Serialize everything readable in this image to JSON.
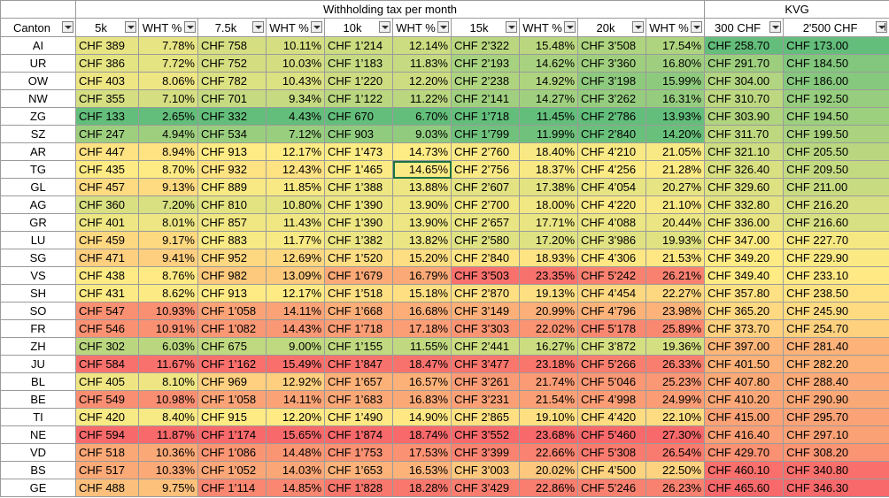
{
  "group_headers": [
    "",
    "Withholding tax per month",
    "KVG"
  ],
  "columns": [
    "Canton",
    "5k",
    "WHT %",
    "7.5k",
    "WHT %",
    "10k",
    "WHT %",
    "15k",
    "WHT %",
    "20k",
    "WHT %",
    "300 CHF",
    "2'500 CHF"
  ],
  "rows": [
    [
      "AI",
      "CHF 389",
      "7.78%",
      "CHF 758",
      "10.11%",
      "CHF 1’214",
      "12.14%",
      "CHF 2’322",
      "15.48%",
      "CHF 3’508",
      "17.54%",
      "CHF 258.70",
      "CHF 173.00"
    ],
    [
      "UR",
      "CHF 386",
      "7.72%",
      "CHF 752",
      "10.03%",
      "CHF 1’183",
      "11.83%",
      "CHF 2’193",
      "14.62%",
      "CHF 3’360",
      "16.80%",
      "CHF 291.70",
      "CHF 184.50"
    ],
    [
      "OW",
      "CHF 403",
      "8.06%",
      "CHF 782",
      "10.43%",
      "CHF 1’220",
      "12.20%",
      "CHF 2’238",
      "14.92%",
      "CHF 3’198",
      "15.99%",
      "CHF 304.00",
      "CHF 186.00"
    ],
    [
      "NW",
      "CHF 355",
      "7.10%",
      "CHF 701",
      "9.34%",
      "CHF 1’122",
      "11.22%",
      "CHF 2’141",
      "14.27%",
      "CHF 3’262",
      "16.31%",
      "CHF 310.70",
      "CHF 192.50"
    ],
    [
      "ZG",
      "CHF 133",
      "2.65%",
      "CHF 332",
      "4.43%",
      "CHF 670",
      "6.70%",
      "CHF 1’718",
      "11.45%",
      "CHF 2’786",
      "13.93%",
      "CHF 303.90",
      "CHF 194.50"
    ],
    [
      "SZ",
      "CHF 247",
      "4.94%",
      "CHF 534",
      "7.12%",
      "CHF 903",
      "9.03%",
      "CHF 1’799",
      "11.99%",
      "CHF 2’840",
      "14.20%",
      "CHF 311.70",
      "CHF 199.50"
    ],
    [
      "AR",
      "CHF 447",
      "8.94%",
      "CHF 913",
      "12.17%",
      "CHF 1’473",
      "14.73%",
      "CHF 2’760",
      "18.40%",
      "CHF 4’210",
      "21.05%",
      "CHF 321.10",
      "CHF 205.50"
    ],
    [
      "TG",
      "CHF 435",
      "8.70%",
      "CHF 932",
      "12.43%",
      "CHF 1’465",
      "14.65%",
      "CHF 2’756",
      "18.37%",
      "CHF 4’256",
      "21.28%",
      "CHF 326.40",
      "CHF 209.50"
    ],
    [
      "GL",
      "CHF 457",
      "9.13%",
      "CHF 889",
      "11.85%",
      "CHF 1’388",
      "13.88%",
      "CHF 2’607",
      "17.38%",
      "CHF 4’054",
      "20.27%",
      "CHF 329.60",
      "CHF 211.00"
    ],
    [
      "AG",
      "CHF 360",
      "7.20%",
      "CHF 810",
      "10.80%",
      "CHF 1’390",
      "13.90%",
      "CHF 2’700",
      "18.00%",
      "CHF 4’220",
      "21.10%",
      "CHF 332.80",
      "CHF 216.20"
    ],
    [
      "GR",
      "CHF 401",
      "8.01%",
      "CHF 857",
      "11.43%",
      "CHF 1’390",
      "13.90%",
      "CHF 2’657",
      "17.71%",
      "CHF 4’088",
      "20.44%",
      "CHF 336.00",
      "CHF 216.60"
    ],
    [
      "LU",
      "CHF 459",
      "9.17%",
      "CHF 883",
      "11.77%",
      "CHF 1’382",
      "13.82%",
      "CHF 2’580",
      "17.20%",
      "CHF 3’986",
      "19.93%",
      "CHF 347.00",
      "CHF 227.70"
    ],
    [
      "SG",
      "CHF 471",
      "9.41%",
      "CHF 952",
      "12.69%",
      "CHF 1’520",
      "15.20%",
      "CHF 2’840",
      "18.93%",
      "CHF 4’306",
      "21.53%",
      "CHF 349.20",
      "CHF 229.90"
    ],
    [
      "VS",
      "CHF 438",
      "8.76%",
      "CHF 982",
      "13.09%",
      "CHF 1’679",
      "16.79%",
      "CHF 3’503",
      "23.35%",
      "CHF 5’242",
      "26.21%",
      "CHF 349.40",
      "CHF 233.10"
    ],
    [
      "SH",
      "CHF 431",
      "8.62%",
      "CHF 913",
      "12.17%",
      "CHF 1’518",
      "15.18%",
      "CHF 2’870",
      "19.13%",
      "CHF 4’454",
      "22.27%",
      "CHF 357.80",
      "CHF 238.50"
    ],
    [
      "SO",
      "CHF 547",
      "10.93%",
      "CHF 1’058",
      "14.11%",
      "CHF 1’668",
      "16.68%",
      "CHF 3’149",
      "20.99%",
      "CHF 4’796",
      "23.98%",
      "CHF 365.20",
      "CHF 245.90"
    ],
    [
      "FR",
      "CHF 546",
      "10.91%",
      "CHF 1’082",
      "14.43%",
      "CHF 1’718",
      "17.18%",
      "CHF 3’303",
      "22.02%",
      "CHF 5’178",
      "25.89%",
      "CHF 373.70",
      "CHF 254.70"
    ],
    [
      "ZH",
      "CHF 302",
      "6.03%",
      "CHF 675",
      "9.00%",
      "CHF 1’155",
      "11.55%",
      "CHF 2’441",
      "16.27%",
      "CHF 3’872",
      "19.36%",
      "CHF 397.00",
      "CHF 281.40"
    ],
    [
      "JU",
      "CHF 584",
      "11.67%",
      "CHF 1’162",
      "15.49%",
      "CHF 1’847",
      "18.47%",
      "CHF 3’477",
      "23.18%",
      "CHF 5’266",
      "26.33%",
      "CHF 401.50",
      "CHF 282.20"
    ],
    [
      "BL",
      "CHF 405",
      "8.10%",
      "CHF 969",
      "12.92%",
      "CHF 1’657",
      "16.57%",
      "CHF 3’261",
      "21.74%",
      "CHF 5’046",
      "25.23%",
      "CHF 407.80",
      "CHF 288.40"
    ],
    [
      "BE",
      "CHF 549",
      "10.98%",
      "CHF 1’058",
      "14.11%",
      "CHF 1’683",
      "16.83%",
      "CHF 3’231",
      "21.54%",
      "CHF 4’998",
      "24.99%",
      "CHF 410.20",
      "CHF 290.90"
    ],
    [
      "TI",
      "CHF 420",
      "8.40%",
      "CHF 915",
      "12.20%",
      "CHF 1’490",
      "14.90%",
      "CHF 2’865",
      "19.10%",
      "CHF 4’420",
      "22.10%",
      "CHF 415.00",
      "CHF 295.70"
    ],
    [
      "NE",
      "CHF 594",
      "11.87%",
      "CHF 1’174",
      "15.65%",
      "CHF 1’874",
      "18.74%",
      "CHF 3’552",
      "23.68%",
      "CHF 5’460",
      "27.30%",
      "CHF 416.40",
      "CHF 297.10"
    ],
    [
      "VD",
      "CHF 518",
      "10.36%",
      "CHF 1’086",
      "14.48%",
      "CHF 1’753",
      "17.53%",
      "CHF 3’399",
      "22.66%",
      "CHF 5’308",
      "26.54%",
      "CHF 429.70",
      "CHF 308.20"
    ],
    [
      "BS",
      "CHF 517",
      "10.33%",
      "CHF 1’052",
      "14.03%",
      "CHF 1’653",
      "16.53%",
      "CHF 3’003",
      "20.02%",
      "CHF 4’500",
      "22.50%",
      "CHF 460.10",
      "CHF 340.80"
    ],
    [
      "GE",
      "CHF 488",
      "9.75%",
      "CHF 1’114",
      "14.85%",
      "CHF 1’828",
      "18.28%",
      "CHF 3’429",
      "22.86%",
      "CHF 5’246",
      "26.23%",
      "CHF 465.60",
      "CHF 346.30"
    ]
  ],
  "scale_colors": {
    "low": "#63be7b",
    "mid": "#ffeb84",
    "high": "#f8696b"
  },
  "border_color": "#9a9a9a",
  "selection_color": "#1e7145",
  "selected_cell": {
    "row": 7,
    "col": 6
  },
  "sorted_column": 12,
  "filter_icon": "filter-dropdown-icon"
}
